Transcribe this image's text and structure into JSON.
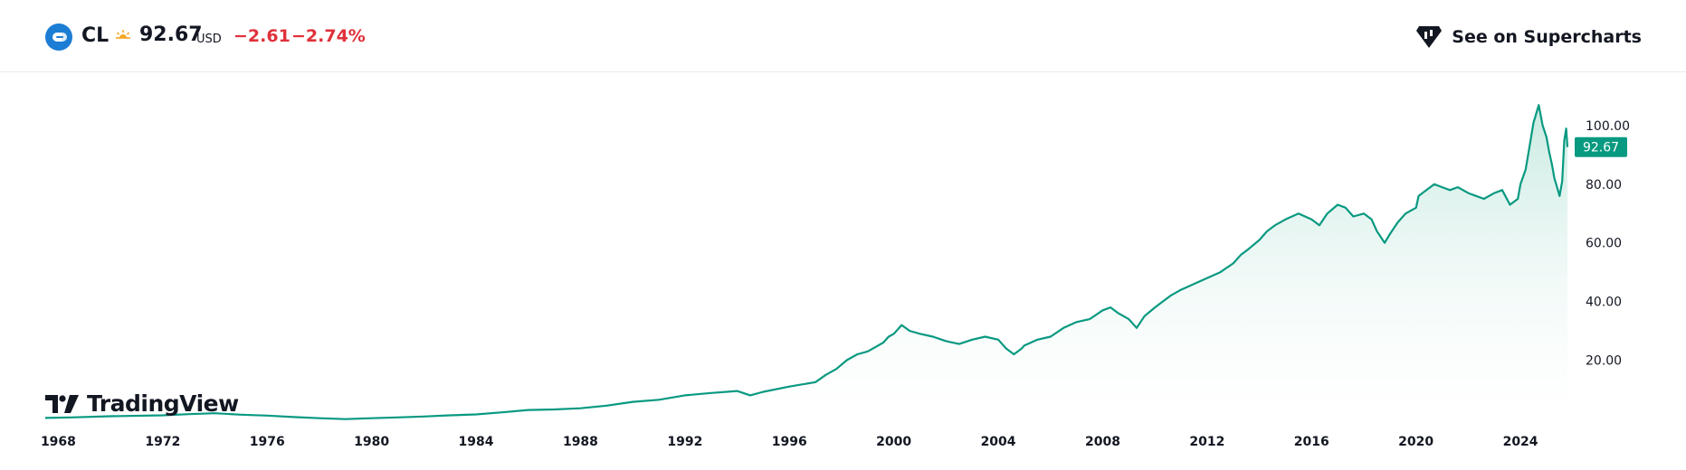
{
  "header": {
    "symbol": "CL",
    "price": "92.67",
    "currency": "USD",
    "change": "−2.61",
    "change_pct": "−2.74%",
    "symbol_icon": "exchange-logo-icon",
    "session_icon": "pre-market-sun-icon",
    "supercharts_label": "See on Supercharts",
    "supercharts_icon": "tradingview-supercharts-icon"
  },
  "watermark": {
    "text": "TradingView",
    "icon": "tradingview-logo-icon"
  },
  "colors": {
    "line": "#089981",
    "fill_top": "#bfe6dc",
    "fill_bottom": "#ffffff",
    "negative": "#e0313b",
    "price_label_bg": "#089981"
  },
  "chart_data": {
    "type": "area",
    "title": "",
    "xlabel": "",
    "ylabel": "",
    "x_ticks": [
      "1968",
      "1972",
      "1976",
      "1980",
      "1984",
      "1988",
      "1992",
      "1996",
      "2000",
      "2004",
      "2008",
      "2012",
      "2016",
      "2020",
      "2024"
    ],
    "y_ticks": [
      "20.00",
      "40.00",
      "60.00",
      "80.00",
      "100.00"
    ],
    "xlim": [
      1967.5,
      2025.8
    ],
    "ylim": [
      -0.5,
      112
    ],
    "last_price_label": "92.67",
    "grid": false,
    "legend": "none",
    "series": [
      {
        "x": [
          1967.5,
          1968.5,
          1970,
          1972,
          1973,
          1974,
          1975,
          1976,
          1977,
          1978,
          1979,
          1980,
          1981,
          1982,
          1983,
          1984,
          1985,
          1986,
          1987,
          1988,
          1989,
          1990,
          1991,
          1992,
          1993,
          1994,
          1994.5,
          1995,
          1996,
          1997,
          1997.4,
          1997.8,
          1998.2,
          1998.6,
          1999,
          1999.3,
          1999.6,
          1999.8,
          2000,
          2000.3,
          2000.6,
          2001,
          2001.5,
          2002,
          2002.5,
          2003,
          2003.5,
          2004,
          2004.3,
          2004.6,
          2004.9,
          2005,
          2005.5,
          2006,
          2006.5,
          2007,
          2007.5,
          2008,
          2008.3,
          2008.6,
          2009,
          2009.3,
          2009.6,
          2010,
          2010.3,
          2010.6,
          2011,
          2011.5,
          2012,
          2012.5,
          2013,
          2013.3,
          2013.6,
          2014,
          2014.3,
          2014.6,
          2015,
          2015.5,
          2016,
          2016.3,
          2016.6,
          2017,
          2017.3,
          2017.6,
          2018,
          2018.3,
          2018.5,
          2018.8,
          2019,
          2019.3,
          2019.6,
          2020,
          2020.1,
          2020.4,
          2020.7,
          2021,
          2021.3,
          2021.6,
          2022,
          2022.3,
          2022.6,
          2023,
          2023.3,
          2023.6,
          2023.9,
          2024,
          2024.2,
          2024.35,
          2024.5,
          2024.7,
          2024.85,
          2025,
          2025.1,
          2025.2,
          2025.3,
          2025.4,
          2025.5,
          2025.6,
          2025.68,
          2025.75,
          2025.8
        ],
        "values": [
          0.3,
          0.5,
          0.9,
          1.2,
          1.6,
          1.9,
          1.4,
          1.1,
          0.6,
          0.2,
          -0.1,
          0.2,
          0.5,
          0.8,
          1.2,
          1.5,
          2.2,
          3.0,
          3.2,
          3.6,
          4.5,
          5.8,
          6.5,
          8.0,
          8.8,
          9.5,
          8.0,
          9.2,
          11.0,
          12.5,
          15.0,
          17.0,
          20.0,
          22.0,
          23.0,
          24.5,
          26.0,
          28.0,
          29.0,
          32.0,
          30.0,
          29.0,
          28.0,
          26.5,
          25.5,
          27.0,
          28.0,
          27.0,
          24.0,
          22.0,
          24.0,
          25.0,
          27.0,
          28.0,
          31.0,
          33.0,
          34.0,
          37.0,
          38.0,
          36.0,
          34.0,
          31.0,
          35.0,
          38.0,
          40.0,
          42.0,
          44.0,
          46.0,
          48.0,
          50.0,
          53.0,
          56.0,
          58.0,
          61.0,
          64.0,
          66.0,
          68.0,
          70.0,
          68.0,
          66.0,
          70.0,
          73.0,
          72.0,
          69.0,
          70.0,
          68.0,
          64.0,
          60.0,
          63.0,
          67.0,
          70.0,
          72.0,
          76.0,
          78.0,
          80.0,
          79.0,
          78.0,
          79.0,
          77.0,
          76.0,
          75.0,
          77.0,
          78.0,
          73.0,
          75.0,
          80.0,
          85.0,
          93.0,
          101.0,
          107.0,
          100.0,
          96.0,
          91.0,
          87.0,
          82.0,
          79.0,
          76.0,
          81.0,
          95.0,
          99.0,
          92.67
        ]
      }
    ]
  }
}
